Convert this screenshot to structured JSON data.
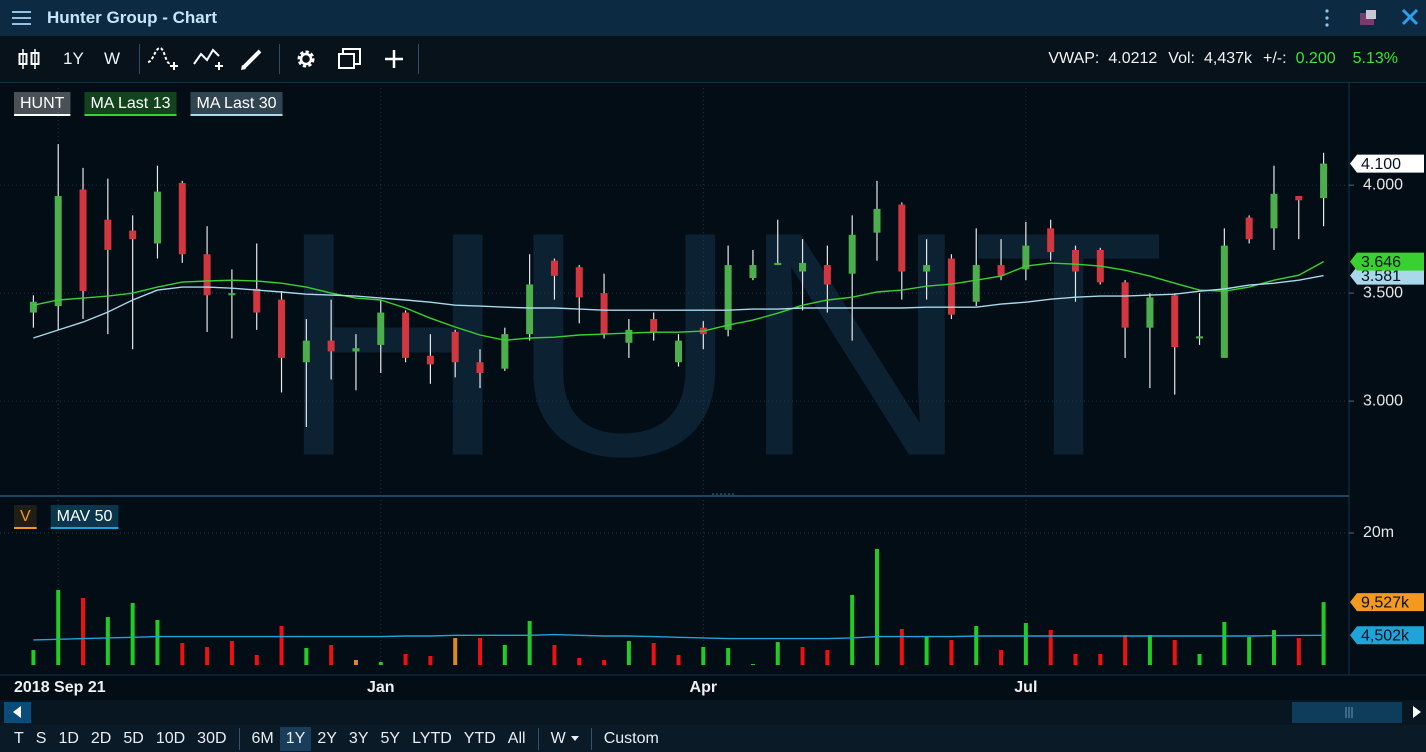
{
  "window": {
    "title": "Hunter Group - Chart"
  },
  "toolbar": {
    "period": "1Y",
    "interval": "W",
    "stats": [
      {
        "label": "VWAP:",
        "value": "4.0212"
      },
      {
        "label": "Vol:",
        "value": "4,437k"
      },
      {
        "label": "+/-:",
        "value": "0.200",
        "change": "5.13%"
      }
    ]
  },
  "chart_data": [
    {
      "type": "candlestick",
      "name": "HUNT",
      "color": "#ffffff",
      "watermark": "HUNT",
      "up_color": "#4cae4c",
      "down_color": "#d2363e",
      "categories": [
        null,
        "2018 Sep 21",
        null,
        null,
        null,
        null,
        null,
        null,
        null,
        null,
        null,
        null,
        null,
        null,
        "Jan",
        null,
        null,
        null,
        null,
        null,
        null,
        null,
        null,
        null,
        null,
        null,
        null,
        "Apr",
        null,
        null,
        null,
        null,
        null,
        null,
        null,
        null,
        null,
        null,
        null,
        null,
        "Jul",
        null,
        null,
        null,
        null,
        null,
        null,
        null,
        null,
        null,
        null,
        null,
        null
      ],
      "open": [
        3.41,
        3.44,
        3.98,
        3.84,
        3.79,
        3.73,
        4.01,
        3.68,
        3.49,
        3.52,
        3.47,
        3.18,
        3.28,
        3.23,
        3.26,
        3.41,
        3.21,
        3.32,
        3.18,
        3.15,
        3.31,
        3.65,
        3.62,
        3.5,
        3.27,
        3.38,
        3.18,
        3.34,
        3.33,
        3.57,
        3.63,
        3.6,
        3.63,
        3.59,
        3.78,
        3.91,
        3.6,
        3.66,
        3.46,
        3.63,
        3.61,
        3.8,
        3.7,
        3.7,
        3.55,
        3.34,
        3.49,
        3.29,
        3.2,
        3.85,
        3.8,
        3.95,
        3.94
      ],
      "high": [
        3.49,
        4.19,
        4.08,
        4.03,
        3.86,
        4.09,
        4.02,
        3.81,
        3.61,
        3.73,
        3.51,
        3.38,
        3.47,
        3.31,
        3.47,
        3.42,
        3.31,
        3.33,
        3.24,
        3.34,
        3.68,
        3.66,
        3.63,
        3.59,
        3.38,
        3.41,
        3.31,
        3.37,
        3.72,
        3.7,
        3.84,
        3.75,
        3.72,
        3.86,
        4.02,
        3.92,
        3.75,
        3.68,
        3.8,
        3.75,
        3.83,
        3.84,
        3.72,
        3.71,
        3.56,
        3.5,
        3.5,
        3.5,
        3.8,
        3.86,
        4.09,
        3.95,
        4.15
      ],
      "low": [
        3.34,
        3.33,
        3.38,
        3.31,
        3.24,
        3.66,
        3.64,
        3.32,
        3.29,
        3.33,
        3.04,
        2.88,
        3.1,
        3.05,
        3.13,
        3.18,
        3.08,
        3.11,
        3.06,
        3.14,
        3.28,
        3.47,
        3.36,
        3.29,
        3.2,
        3.28,
        3.16,
        3.24,
        3.3,
        3.56,
        3.63,
        3.42,
        3.41,
        3.28,
        3.65,
        3.47,
        3.47,
        3.38,
        3.44,
        3.56,
        3.56,
        3.65,
        3.46,
        3.54,
        3.2,
        3.06,
        3.03,
        3.26,
        3.2,
        3.73,
        3.7,
        3.75,
        3.81
      ],
      "close": [
        3.46,
        3.95,
        3.51,
        3.7,
        3.75,
        3.97,
        3.68,
        3.49,
        3.5,
        3.41,
        3.2,
        3.28,
        3.23,
        3.245,
        3.41,
        3.2,
        3.17,
        3.18,
        3.13,
        3.31,
        3.54,
        3.58,
        3.48,
        3.31,
        3.33,
        3.32,
        3.28,
        3.31,
        3.63,
        3.63,
        3.64,
        3.64,
        3.54,
        3.77,
        3.89,
        3.6,
        3.63,
        3.4,
        3.63,
        3.58,
        3.72,
        3.69,
        3.6,
        3.55,
        3.34,
        3.48,
        3.25,
        3.3,
        3.72,
        3.75,
        3.96,
        3.93,
        4.1
      ],
      "last_label": "4.100",
      "series": [
        {
          "name": "MA Last 13",
          "color": "#39d12f",
          "last_label": "3.646",
          "values": [
            3.444,
            3.468,
            3.477,
            3.486,
            3.5,
            3.528,
            3.551,
            3.556,
            3.56,
            3.556,
            3.546,
            3.528,
            3.5,
            3.477,
            3.468,
            3.431,
            3.384,
            3.343,
            3.306,
            3.282,
            3.292,
            3.296,
            3.306,
            3.31,
            3.315,
            3.319,
            3.319,
            3.324,
            3.352,
            3.375,
            3.407,
            3.444,
            3.468,
            3.481,
            3.505,
            3.514,
            3.532,
            3.542,
            3.56,
            3.579,
            3.625,
            3.639,
            3.634,
            3.625,
            3.606,
            3.579,
            3.546,
            3.514,
            3.509,
            3.528,
            3.56,
            3.583,
            3.646
          ]
        },
        {
          "name": "MA Last 30",
          "color": "#a8d8ea",
          "last_label": "3.581",
          "values": [
            3.292,
            3.329,
            3.366,
            3.412,
            3.468,
            3.514,
            3.528,
            3.528,
            3.523,
            3.514,
            3.505,
            3.495,
            3.491,
            3.486,
            3.477,
            3.468,
            3.458,
            3.444,
            3.44,
            3.435,
            3.431,
            3.431,
            3.426,
            3.421,
            3.421,
            3.421,
            3.421,
            3.421,
            3.421,
            3.426,
            3.426,
            3.431,
            3.431,
            3.431,
            3.431,
            3.431,
            3.435,
            3.435,
            3.435,
            3.449,
            3.458,
            3.472,
            3.481,
            3.486,
            3.486,
            3.491,
            3.495,
            3.509,
            3.519,
            3.537,
            3.546,
            3.56,
            3.581
          ]
        }
      ],
      "ylim": [
        2.565,
        4.45
      ],
      "yticks": [
        {
          "value": 3,
          "label": "3.000"
        },
        {
          "value": 3.5,
          "label": "3.500"
        },
        {
          "value": 4,
          "label": "4.000"
        }
      ],
      "grid": true
    },
    {
      "type": "bar",
      "name": "V",
      "color": "#f39a1e",
      "last_label": "9,527k",
      "values": [
        2270,
        11360,
        10150,
        7270,
        9390,
        6820,
        3330,
        2730,
        3640,
        1520,
        5910,
        2580,
        3030,
        760,
        450,
        1670,
        1360,
        4090,
        4090,
        3030,
        6670,
        3030,
        1060,
        760,
        3640,
        3330,
        1520,
        2730,
        2580,
        150,
        3480,
        2730,
        2270,
        10610,
        17580,
        5450,
        4240,
        3790,
        5910,
        2270,
        6360,
        5300,
        1670,
        1670,
        4550,
        4550,
        3790,
        1670,
        6520,
        4240,
        5300,
        4090,
        9527
      ],
      "colors": [
        "#2c2",
        "#2c2",
        "#e11",
        "#2c2",
        "#2c2",
        "#2c2",
        "#e11",
        "#e11",
        "#e11",
        "#e11",
        "#e11",
        "#2c2",
        "#e11",
        "#d82",
        "#2c2",
        "#e11",
        "#e11",
        "#d82",
        "#e11",
        "#2c2",
        "#2c2",
        "#e11",
        "#e11",
        "#e11",
        "#2c2",
        "#e11",
        "#e11",
        "#2c2",
        "#2c2",
        "#2c2",
        "#2c2",
        "#e11",
        "#e11",
        "#2c2",
        "#2c2",
        "#e11",
        "#2c2",
        "#e11",
        "#2c2",
        "#e11",
        "#2c2",
        "#e11",
        "#e11",
        "#e11",
        "#e11",
        "#2c2",
        "#e11",
        "#2c2",
        "#2c2",
        "#2c2",
        "#2c2",
        "#e11",
        "#2c2"
      ],
      "series": [
        {
          "name": "MAV 50",
          "color": "#1ea4d8",
          "last_label": "4,502k",
          "values": [
            3800,
            3900,
            4000,
            4100,
            4200,
            4300,
            4300,
            4300,
            4300,
            4300,
            4300,
            4300,
            4300,
            4300,
            4300,
            4400,
            4400,
            4500,
            4500,
            4500,
            4500,
            4600,
            4500,
            4400,
            4400,
            4300,
            4200,
            4100,
            4000,
            4000,
            4000,
            4000,
            4000,
            4100,
            4300,
            4300,
            4300,
            4300,
            4400,
            4400,
            4400,
            4400,
            4400,
            4400,
            4400,
            4400,
            4400,
            4400,
            4400,
            4400,
            4450,
            4480,
            4502
          ]
        }
      ],
      "ylim": [
        0,
        25000
      ],
      "yticks": [
        {
          "value": 20000,
          "label": "20m"
        }
      ],
      "grid": true
    }
  ],
  "ranges": [
    [
      "T",
      "S",
      "1D",
      "2D",
      "5D",
      "10D",
      "30D"
    ],
    [
      "6M",
      "1Y",
      "2Y",
      "3Y",
      "5Y",
      "LYTD",
      "YTD",
      "All"
    ],
    [
      "W"
    ],
    [
      "Custom"
    ]
  ]
}
